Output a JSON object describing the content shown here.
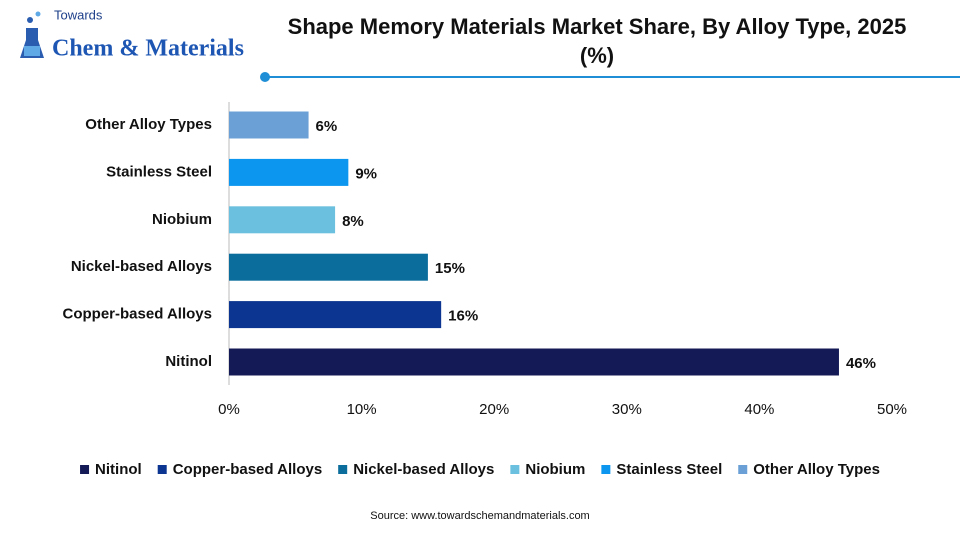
{
  "logo": {
    "top": "Towards",
    "name": "Chem & Materials"
  },
  "chart_data": {
    "type": "barh",
    "title": "Shape Memory Materials Market Share, By Alloy Type, 2025 (%)",
    "categories": [
      "Nitinol",
      "Copper-based Alloys",
      "Nickel-based Alloys",
      "Niobium",
      "Stainless Steel",
      "Other Alloy Types"
    ],
    "values": [
      46,
      16,
      15,
      8,
      9,
      6
    ],
    "value_labels": [
      "46%",
      "16%",
      "15%",
      "8%",
      "9%",
      "6%"
    ],
    "colors": [
      "#141a56",
      "#0b3590",
      "#0b6d9c",
      "#6cc0df",
      "#0d96ef",
      "#6aa0d6"
    ],
    "xlim": [
      0,
      50
    ],
    "xticks": [
      {
        "value": 0,
        "label": "0%"
      },
      {
        "value": 10,
        "label": "10%"
      },
      {
        "value": 20,
        "label": "20%"
      },
      {
        "value": 30,
        "label": "30%"
      },
      {
        "value": 40,
        "label": "40%"
      },
      {
        "value": 50,
        "label": "50%"
      }
    ],
    "legend": "bottom",
    "source": "Source: www.towardschemandmaterials.com"
  }
}
